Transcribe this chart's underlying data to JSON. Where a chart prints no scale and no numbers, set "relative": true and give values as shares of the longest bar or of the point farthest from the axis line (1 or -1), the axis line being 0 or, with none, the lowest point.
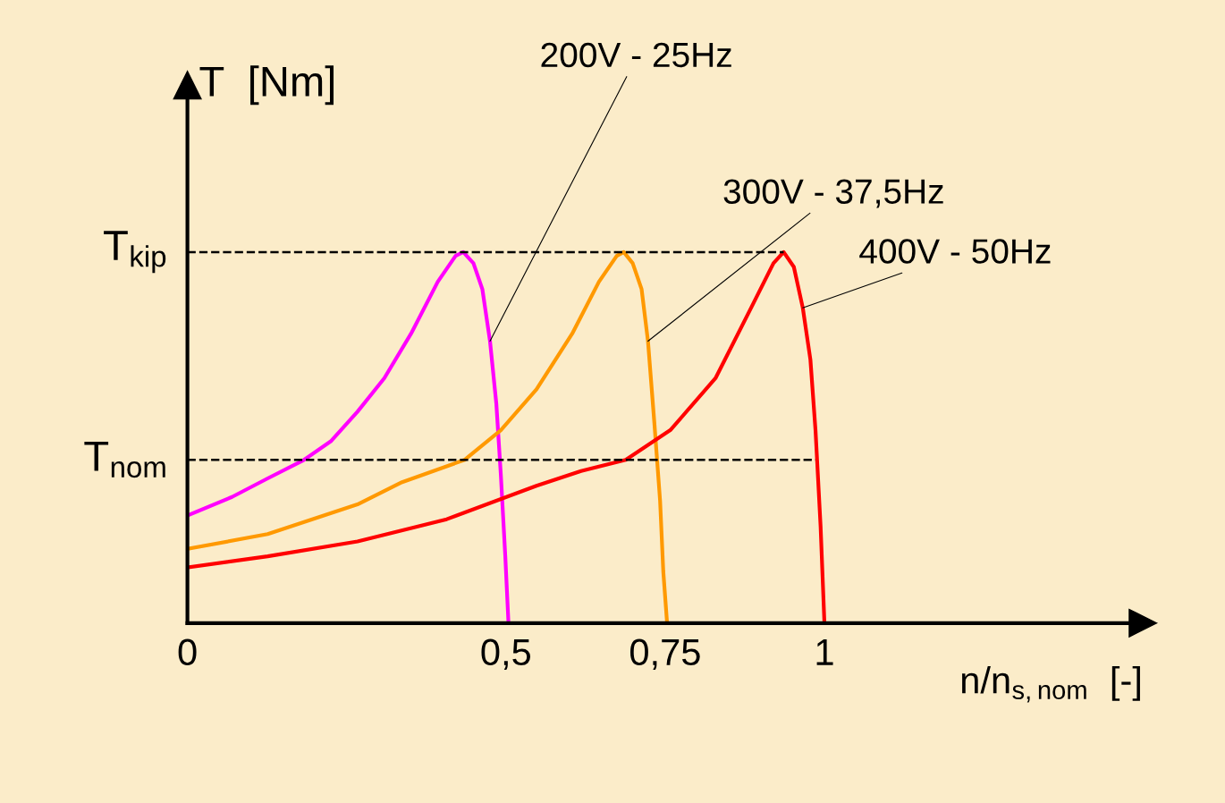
{
  "chart_data": {
    "type": "line",
    "relative": true,
    "xlabel": "n/n$_{s,nom}$  [-]",
    "ylabel": "T  [Nm]",
    "xlim": [
      0,
      1.5
    ],
    "xticks": [
      0,
      {
        "value": 0.5,
        "label": "0,5"
      },
      {
        "value": 0.75,
        "label": "0,75"
      },
      1
    ],
    "grid": false,
    "legend": false,
    "marker": "none",
    "line_style": "solid",
    "ref_lines": [
      {
        "axis": "y",
        "value": 1,
        "label": "T$_{kip}$",
        "color": "#000000",
        "line_style": "dashed"
      },
      {
        "axis": "y",
        "value": 0.44,
        "label": "T$_{nom}$",
        "color": "#000000",
        "line_style": "dashed"
      }
    ],
    "series": [
      {
        "name": "200V - 25Hz",
        "color": "#ff00ff",
        "x": [
          0,
          0.07,
          0.126,
          0.183,
          0.225,
          0.267,
          0.309,
          0.351,
          0.393,
          0.421,
          0.433,
          0.449,
          0.463,
          0.475,
          0.485,
          0.492,
          0.499,
          0.504
        ],
        "values": [
          0.29,
          0.34,
          0.39,
          0.44,
          0.49,
          0.57,
          0.66,
          0.78,
          0.92,
          0.99,
          1,
          0.97,
          0.9,
          0.76,
          0.59,
          0.4,
          0.18,
          0
        ]
      },
      {
        "name": "300V - 37,5Hz",
        "color": "#ff9900",
        "x": [
          0,
          0.126,
          0.267,
          0.337,
          0.435,
          0.492,
          0.548,
          0.604,
          0.646,
          0.674,
          0.685,
          0.699,
          0.713,
          0.723,
          0.733,
          0.742,
          0.747,
          0.753
        ],
        "values": [
          0.2,
          0.24,
          0.32,
          0.38,
          0.44,
          0.52,
          0.63,
          0.78,
          0.92,
          0.99,
          1,
          0.97,
          0.9,
          0.76,
          0.54,
          0.33,
          0.14,
          0
        ]
      },
      {
        "name": "400V - 50Hz",
        "color": "#ff0000",
        "x": [
          0,
          0.126,
          0.267,
          0.407,
          0.548,
          0.618,
          0.688,
          0.758,
          0.829,
          0.885,
          0.92,
          0.936,
          0.952,
          0.966,
          0.978,
          0.986,
          0.994,
          1.0
        ],
        "values": [
          0.15,
          0.18,
          0.22,
          0.28,
          0.37,
          0.41,
          0.44,
          0.52,
          0.66,
          0.85,
          0.97,
          1,
          0.96,
          0.85,
          0.71,
          0.52,
          0.26,
          0
        ]
      }
    ]
  }
}
